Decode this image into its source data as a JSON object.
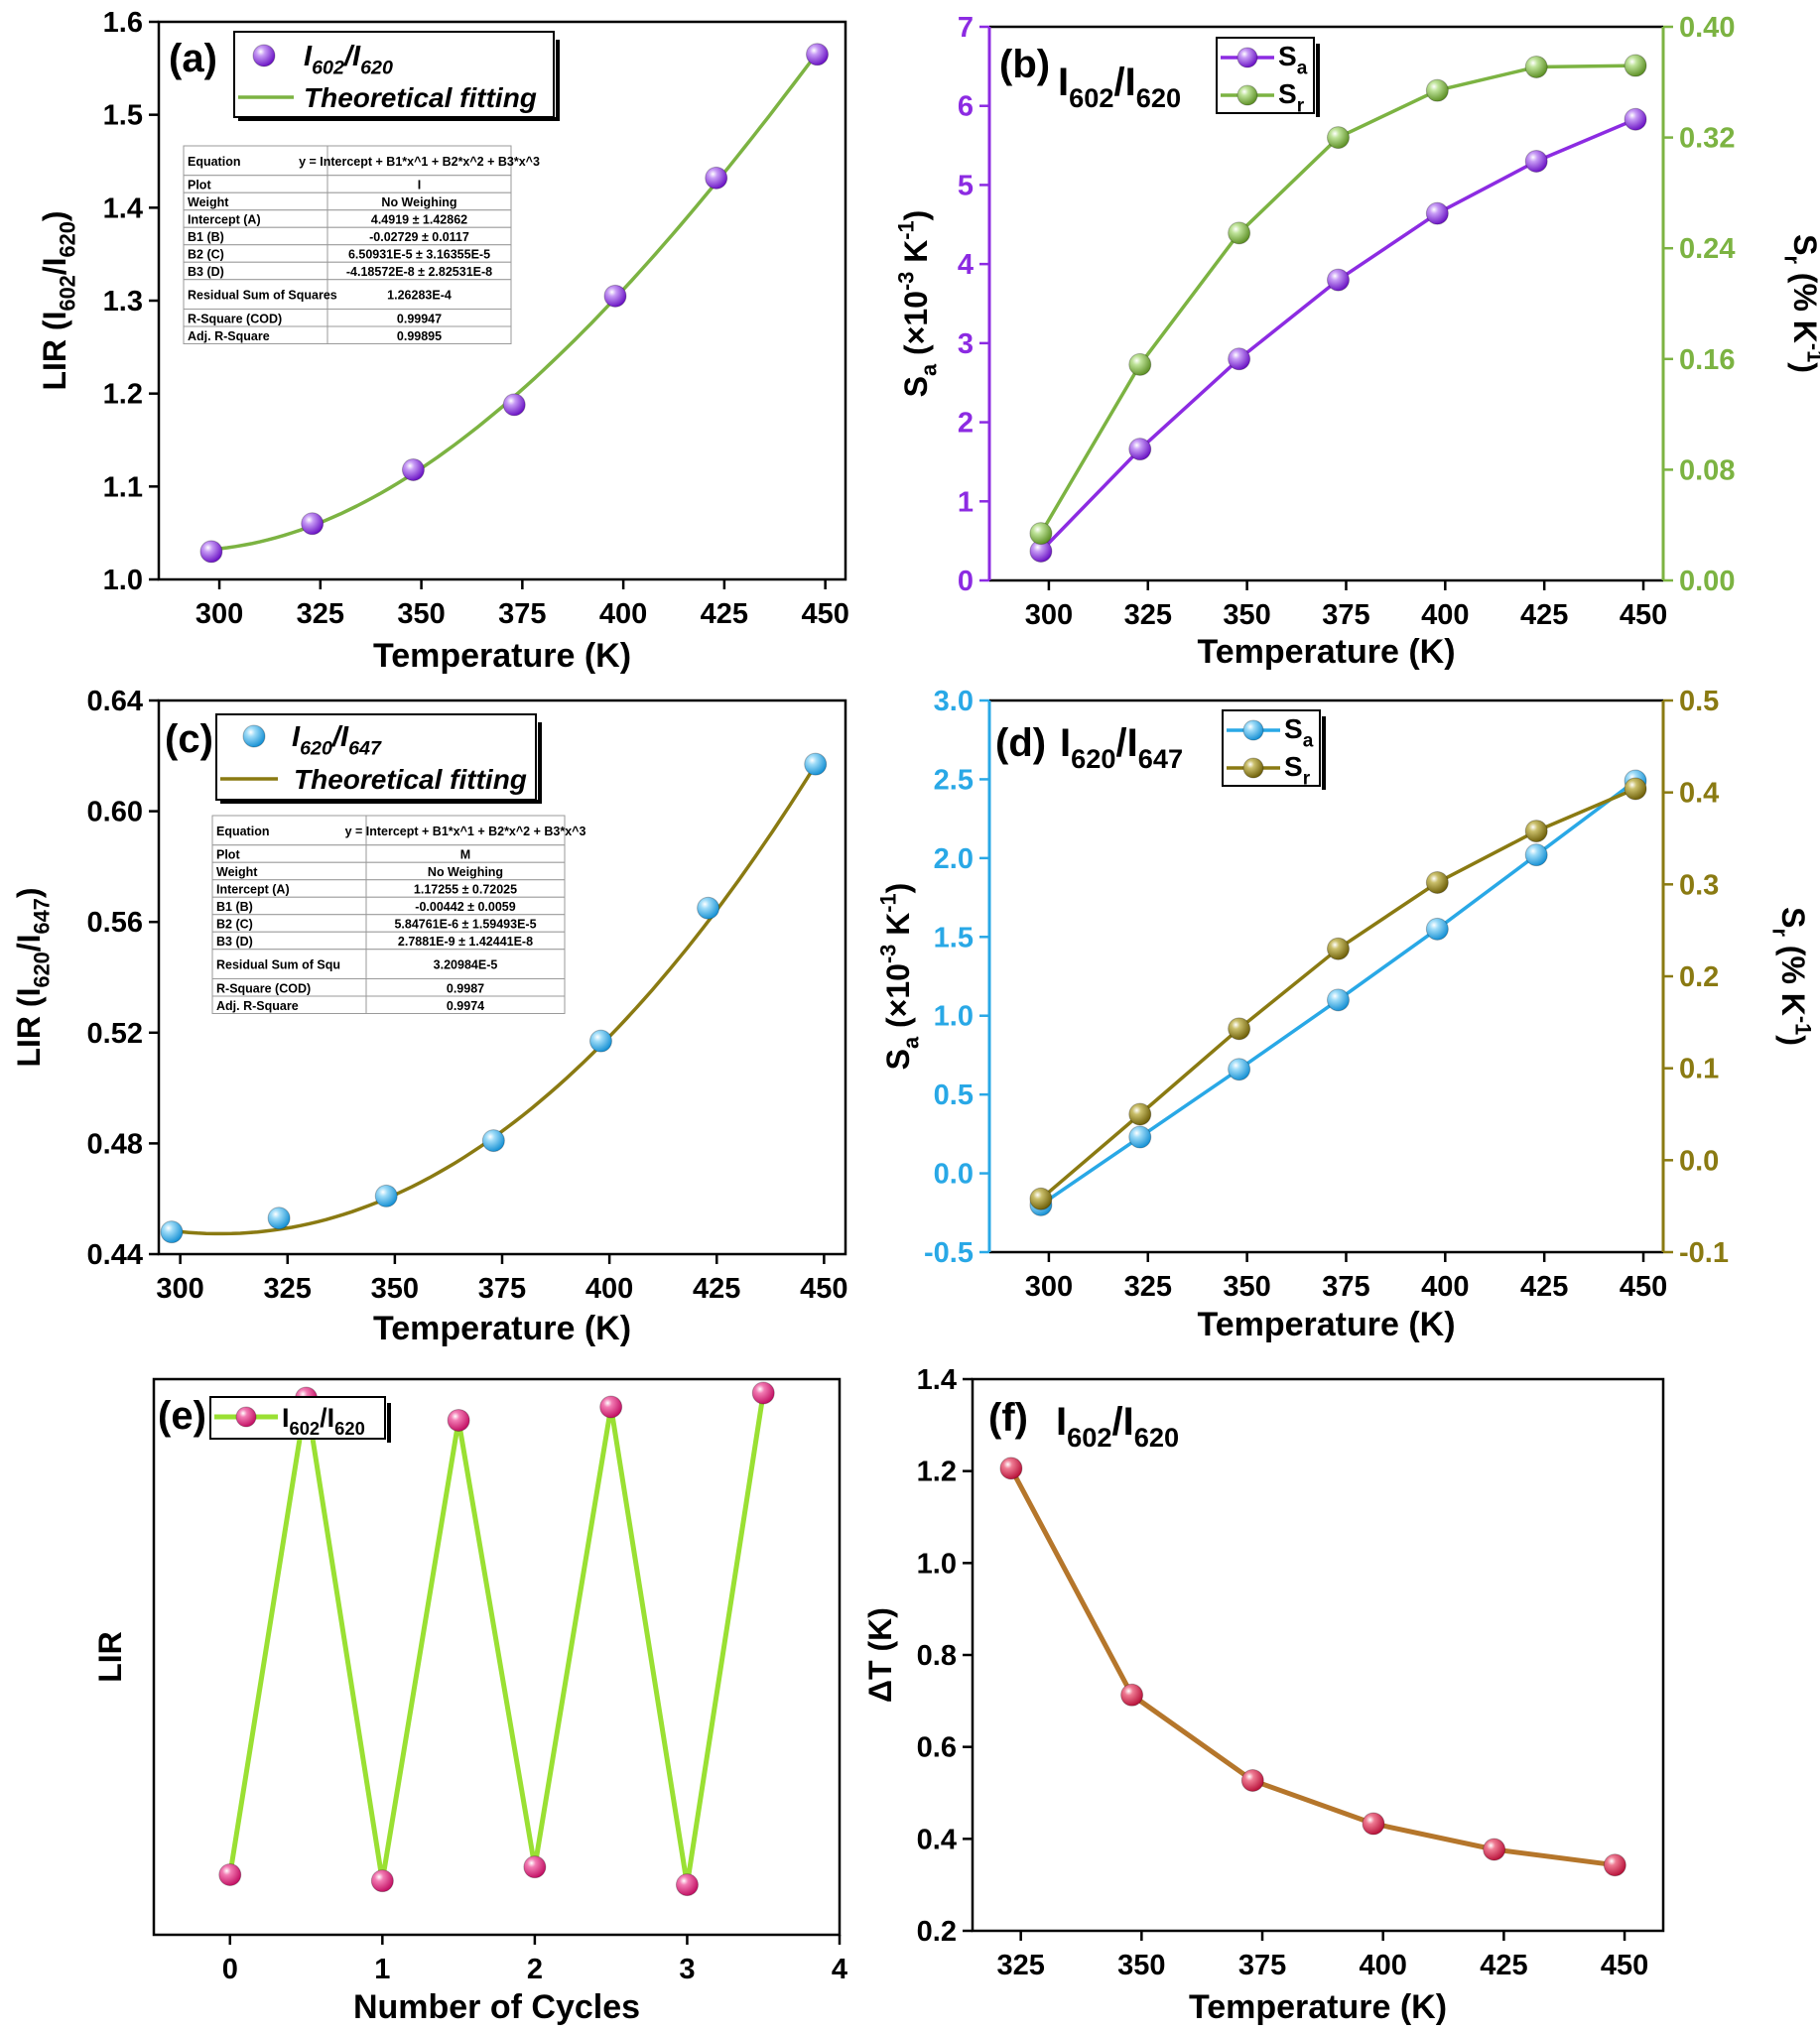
{
  "chart_data": [
    {
      "panel": "(a)",
      "type": "scatter",
      "xlabel": "Temperature (K)",
      "ylabel": "LIR (I602/I620)",
      "xlim": [
        285,
        455
      ],
      "ylim": [
        1.0,
        1.6
      ],
      "xticks": [
        300,
        325,
        350,
        375,
        400,
        425,
        450
      ],
      "yticks": [
        1.0,
        1.1,
        1.2,
        1.3,
        1.4,
        1.5,
        1.6
      ],
      "x": [
        298,
        323,
        348,
        373,
        398,
        423,
        448
      ],
      "series": [
        {
          "name": "I602/I620",
          "values": [
            1.03,
            1.06,
            1.118,
            1.188,
            1.305,
            1.432,
            1.565
          ],
          "color": "#8c2be2"
        }
      ],
      "fit": {
        "name": "Theoretical fitting",
        "color": "#7cb342",
        "coef": [
          4.4919,
          -0.02729,
          6.50931e-05,
          -4.18572e-08
        ]
      },
      "legend": "top-center",
      "fit_table": [
        [
          "Equation",
          "y = Intercept + B1*x^1 + B2*x^2 + B3*x^3"
        ],
        [
          "Plot",
          "I"
        ],
        [
          "Weight",
          "No Weighing"
        ],
        [
          "Intercept (A)",
          "4.4919 ± 1.42862"
        ],
        [
          "B1 (B)",
          "-0.02729 ± 0.0117"
        ],
        [
          "B2 (C)",
          "6.50931E-5 ± 3.16355E-5"
        ],
        [
          "B3 (D)",
          "-4.18572E-8 ± 2.82531E-8"
        ],
        [
          "Residual Sum of Squares",
          "1.26283E-4"
        ],
        [
          "R-Square (COD)",
          "0.99947"
        ],
        [
          "Adj. R-Square",
          "0.99895"
        ]
      ]
    },
    {
      "panel": "(b)",
      "type": "line",
      "title": "I602/I620",
      "xlabel": "Temperature (K)",
      "ylabel": "Sa (×10-3 K-1)",
      "y2label": "Sr (% K-1)",
      "xlim": [
        285,
        455
      ],
      "ylim": [
        0,
        7
      ],
      "y2lim": [
        0,
        0.4
      ],
      "xticks": [
        300,
        325,
        350,
        375,
        400,
        425,
        450
      ],
      "yticks": [
        0,
        1,
        2,
        3,
        4,
        5,
        6,
        7
      ],
      "y2ticks": [
        "0.00",
        "0.08",
        "0.16",
        "0.24",
        "0.32",
        "0.40"
      ],
      "x": [
        298,
        323,
        348,
        373,
        398,
        423,
        448
      ],
      "series": [
        {
          "name": "Sa",
          "axis": "left",
          "values": [
            0.37,
            1.66,
            2.8,
            3.8,
            4.64,
            5.3,
            5.83
          ],
          "color": "#8c2be2"
        },
        {
          "name": "Sr",
          "axis": "right",
          "values": [
            0.034,
            0.156,
            0.251,
            0.32,
            0.354,
            0.371,
            0.372
          ],
          "color": "#7cb342"
        }
      ],
      "legend": "top-right"
    },
    {
      "panel": "(c)",
      "type": "scatter",
      "xlabel": "Temperature (K)",
      "ylabel": "LIR (I620/I647)",
      "xlim": [
        295,
        455
      ],
      "ylim": [
        0.44,
        0.64
      ],
      "xticks": [
        300,
        325,
        350,
        375,
        400,
        425,
        450
      ],
      "yticks": [
        "0.44",
        "0.48",
        "0.52",
        "0.56",
        "0.60",
        "0.64"
      ],
      "x": [
        298,
        323,
        348,
        373,
        398,
        423,
        448
      ],
      "series": [
        {
          "name": "I620/I647",
          "values": [
            0.448,
            0.453,
            0.461,
            0.481,
            0.517,
            0.565,
            0.617
          ],
          "color": "#29a8e6"
        }
      ],
      "fit": {
        "name": "Theoretical fitting",
        "color": "#8a7a12",
        "coef": [
          1.17255,
          -0.00442,
          5.84761e-06,
          2.7881e-09
        ]
      },
      "legend": "top-center",
      "fit_table": [
        [
          "Equation",
          "y = Intercept + B1*x^1 + B2*x^2 + B3*x^3"
        ],
        [
          "Plot",
          "M"
        ],
        [
          "Weight",
          "No Weighing"
        ],
        [
          "Intercept (A)",
          "1.17255 ± 0.72025"
        ],
        [
          "B1 (B)",
          "-0.00442 ± 0.0059"
        ],
        [
          "B2 (C)",
          "5.84761E-6 ± 1.59493E-5"
        ],
        [
          "B3 (D)",
          "2.7881E-9 ± 1.42441E-8"
        ],
        [
          "Residual Sum of Squ",
          "3.20984E-5"
        ],
        [
          "R-Square (COD)",
          "0.9987"
        ],
        [
          "Adj. R-Square",
          "0.9974"
        ]
      ]
    },
    {
      "panel": "(d)",
      "type": "line",
      "title": "I620/I647",
      "xlabel": "Temperature (K)",
      "ylabel": "Sa (×10-3 K-1)",
      "y2label": "Sr (% K-1)",
      "xlim": [
        285,
        455
      ],
      "ylim": [
        -0.5,
        3.0
      ],
      "y2lim": [
        -0.1,
        0.5
      ],
      "xticks": [
        300,
        325,
        350,
        375,
        400,
        425,
        450
      ],
      "yticks": [
        "-0.5",
        "0.0",
        "0.5",
        "1.0",
        "1.5",
        "2.0",
        "2.5",
        "3.0"
      ],
      "y2ticks": [
        "-0.1",
        "0.0",
        "0.1",
        "0.2",
        "0.3",
        "0.4",
        "0.5"
      ],
      "x": [
        298,
        323,
        348,
        373,
        398,
        423,
        448
      ],
      "series": [
        {
          "name": "Sa",
          "axis": "left",
          "values": [
            -0.2,
            0.23,
            0.66,
            1.1,
            1.55,
            2.02,
            2.49
          ],
          "color": "#29a8e6"
        },
        {
          "name": "Sr",
          "axis": "right",
          "values": [
            -0.042,
            0.05,
            0.143,
            0.23,
            0.302,
            0.358,
            0.404
          ],
          "color": "#8a7a12"
        }
      ],
      "legend": "top-right"
    },
    {
      "panel": "(e)",
      "type": "line",
      "xlabel": "Number of Cycles",
      "ylabel": "LIR",
      "xlim": [
        -0.5,
        4
      ],
      "ylim": [
        0,
        1
      ],
      "xticks": [
        0,
        1,
        2,
        3,
        4
      ],
      "x": [
        0,
        0.5,
        1,
        1.5,
        2,
        2.5,
        3,
        3.5
      ],
      "series": [
        {
          "name": "I602/I620",
          "values": [
            0.108,
            0.966,
            0.097,
            0.926,
            0.122,
            0.95,
            0.09,
            0.975
          ],
          "color": "#9ae033"
        }
      ],
      "legend": "top-left"
    },
    {
      "panel": "(f)",
      "type": "line",
      "title": "I602/I620",
      "xlabel": "Temperature (K)",
      "ylabel": "ΔT (K)",
      "xlim": [
        315,
        458
      ],
      "ylim": [
        0.2,
        1.4
      ],
      "xticks": [
        325,
        350,
        375,
        400,
        425,
        450
      ],
      "yticks": [
        "0.2",
        "0.4",
        "0.6",
        "0.8",
        "1.0",
        "1.2",
        "1.4"
      ],
      "x": [
        323,
        348,
        373,
        398,
        423,
        448
      ],
      "series": [
        {
          "name": "ΔT",
          "values": [
            1.206,
            0.713,
            0.527,
            0.433,
            0.377,
            0.343
          ],
          "color": "#b5762b"
        }
      ]
    }
  ]
}
